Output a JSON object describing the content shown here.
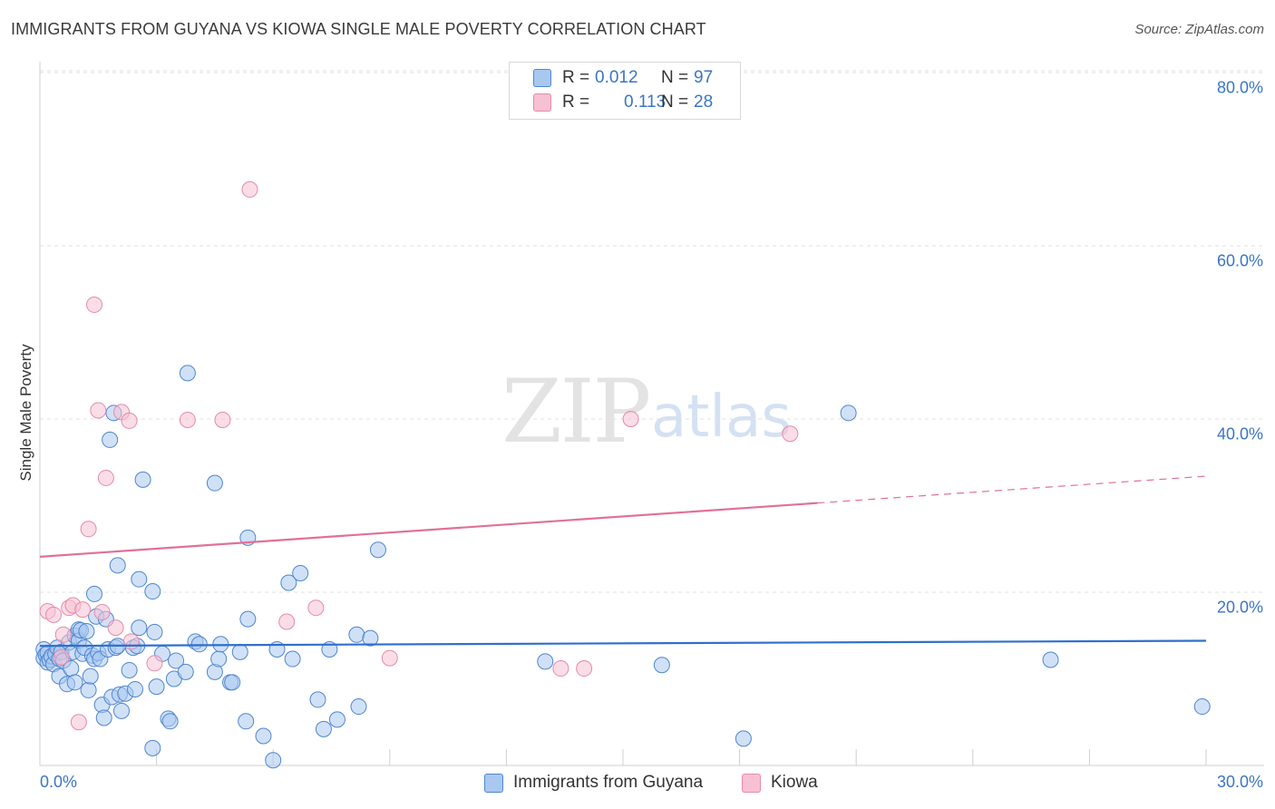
{
  "title": "IMMIGRANTS FROM GUYANA VS KIOWA SINGLE MALE POVERTY CORRELATION CHART",
  "source": "Source: ZipAtlas.com",
  "watermark": {
    "zip": "ZIP",
    "atlas": "atlas"
  },
  "legend": {
    "rows": [
      {
        "r_label": "R =",
        "r_value": "0.012",
        "n_label": "N =",
        "n_value": "97"
      },
      {
        "r_label": "R =",
        "r_value": "0.113",
        "n_label": "N =",
        "n_value": "28"
      }
    ]
  },
  "colors": {
    "blue_fill": "#a9c8f0",
    "blue_stroke": "#4f86cf",
    "blue_line": "#2f6fcc",
    "pink_fill": "#f7c1d3",
    "pink_stroke": "#e68aa8",
    "pink_line": "#e0709a",
    "grid": "#e2e2e2",
    "tick_text": "#3a75c4"
  },
  "chart_data": {
    "type": "scatter",
    "title": "IMMIGRANTS FROM GUYANA VS KIOWA SINGLE MALE POVERTY CORRELATION CHART",
    "xlabel": "",
    "ylabel": "Single Male Poverty",
    "xlim": [
      0,
      30
    ],
    "ylim": [
      0,
      80
    ],
    "x_tick_labels": [
      "0.0%",
      "30.0%"
    ],
    "y_ticks": [
      20,
      40,
      60,
      80
    ],
    "y_tick_labels": [
      "20.0%",
      "40.0%",
      "60.0%",
      "80.0%"
    ],
    "grid": true,
    "legend_position": "top-center",
    "series": [
      {
        "name": "Immigrants from Guyana",
        "color": "#a9c8f0",
        "r": 0.012,
        "n": 97,
        "trend": {
          "x0": 0,
          "y0": 13.8,
          "x1": 30,
          "y1": 14.4
        },
        "points": [
          [
            0.1,
            12.4
          ],
          [
            0.1,
            13.4
          ],
          [
            0.15,
            12.8
          ],
          [
            0.2,
            13.0
          ],
          [
            0.2,
            11.9
          ],
          [
            0.25,
            12.2
          ],
          [
            0.3,
            12.6
          ],
          [
            0.35,
            11.7
          ],
          [
            0.4,
            12.9
          ],
          [
            0.45,
            13.6
          ],
          [
            0.5,
            12.3
          ],
          [
            0.5,
            10.3
          ],
          [
            0.55,
            13.1
          ],
          [
            0.6,
            12.1
          ],
          [
            0.7,
            9.4
          ],
          [
            0.75,
            14.2
          ],
          [
            0.8,
            11.2
          ],
          [
            0.85,
            13.1
          ],
          [
            0.9,
            15.0
          ],
          [
            0.9,
            9.6
          ],
          [
            1.0,
            15.7
          ],
          [
            1.0,
            14.4
          ],
          [
            1.05,
            15.6
          ],
          [
            1.1,
            12.9
          ],
          [
            1.15,
            13.6
          ],
          [
            1.2,
            15.5
          ],
          [
            1.25,
            8.7
          ],
          [
            1.3,
            10.3
          ],
          [
            1.35,
            12.7
          ],
          [
            1.4,
            12.3
          ],
          [
            1.4,
            19.8
          ],
          [
            1.45,
            17.2
          ],
          [
            1.5,
            13.0
          ],
          [
            1.55,
            12.3
          ],
          [
            1.6,
            7.0
          ],
          [
            1.65,
            5.5
          ],
          [
            1.7,
            16.9
          ],
          [
            1.75,
            13.4
          ],
          [
            1.8,
            37.6
          ],
          [
            1.85,
            7.9
          ],
          [
            1.9,
            40.7
          ],
          [
            1.95,
            13.6
          ],
          [
            2.0,
            23.1
          ],
          [
            2.05,
            8.2
          ],
          [
            2.1,
            6.3
          ],
          [
            2.2,
            8.3
          ],
          [
            2.3,
            11.0
          ],
          [
            2.4,
            13.6
          ],
          [
            2.45,
            8.8
          ],
          [
            2.5,
            13.8
          ],
          [
            2.55,
            15.9
          ],
          [
            2.55,
            21.5
          ],
          [
            2.65,
            33.0
          ],
          [
            2.9,
            20.1
          ],
          [
            2.9,
            2.0
          ],
          [
            2.95,
            15.4
          ],
          [
            3.0,
            9.1
          ],
          [
            3.15,
            12.9
          ],
          [
            3.3,
            5.4
          ],
          [
            3.35,
            5.1
          ],
          [
            3.45,
            10.0
          ],
          [
            3.5,
            12.1
          ],
          [
            3.8,
            45.3
          ],
          [
            3.75,
            10.8
          ],
          [
            4.0,
            14.3
          ],
          [
            4.1,
            14.0
          ],
          [
            4.5,
            10.8
          ],
          [
            4.5,
            32.6
          ],
          [
            4.6,
            12.3
          ],
          [
            4.65,
            14.0
          ],
          [
            4.9,
            9.6
          ],
          [
            4.95,
            9.6
          ],
          [
            5.15,
            13.1
          ],
          [
            5.3,
            5.1
          ],
          [
            5.35,
            16.9
          ],
          [
            5.35,
            26.3
          ],
          [
            5.75,
            3.4
          ],
          [
            6.0,
            0.6
          ],
          [
            6.1,
            13.4
          ],
          [
            6.4,
            21.1
          ],
          [
            6.5,
            12.3
          ],
          [
            6.7,
            22.2
          ],
          [
            7.15,
            7.6
          ],
          [
            7.3,
            4.2
          ],
          [
            7.45,
            13.4
          ],
          [
            7.65,
            5.3
          ],
          [
            8.15,
            15.1
          ],
          [
            8.2,
            6.8
          ],
          [
            8.5,
            14.7
          ],
          [
            8.7,
            24.9
          ],
          [
            13.0,
            12.0
          ],
          [
            16.0,
            11.6
          ],
          [
            18.1,
            3.1
          ],
          [
            20.8,
            40.7
          ],
          [
            26.0,
            12.2
          ],
          [
            29.9,
            6.8
          ],
          [
            2.0,
            13.8
          ]
        ]
      },
      {
        "name": "Kiowa",
        "color": "#f7c1d3",
        "r": 0.113,
        "n": 28,
        "trend": {
          "x0": 0,
          "y0": 24.1,
          "x1": 20.0,
          "y1": 30.3,
          "dash_to_x": 30,
          "dash_to_y": 33.4
        },
        "points": [
          [
            0.2,
            17.8
          ],
          [
            0.35,
            17.4
          ],
          [
            0.6,
            15.1
          ],
          [
            0.75,
            18.2
          ],
          [
            0.85,
            18.5
          ],
          [
            1.0,
            5.0
          ],
          [
            1.1,
            18.0
          ],
          [
            1.25,
            27.3
          ],
          [
            1.4,
            53.2
          ],
          [
            1.5,
            41.0
          ],
          [
            1.6,
            17.7
          ],
          [
            1.7,
            33.2
          ],
          [
            1.95,
            15.9
          ],
          [
            2.1,
            40.8
          ],
          [
            2.3,
            39.8
          ],
          [
            2.35,
            14.3
          ],
          [
            2.95,
            11.8
          ],
          [
            3.8,
            39.9
          ],
          [
            4.7,
            39.9
          ],
          [
            5.4,
            66.5
          ],
          [
            6.35,
            16.6
          ],
          [
            7.1,
            18.2
          ],
          [
            9.0,
            12.4
          ],
          [
            13.4,
            11.2
          ],
          [
            14.0,
            11.2
          ],
          [
            15.2,
            40.0
          ],
          [
            19.3,
            38.3
          ],
          [
            0.55,
            12.5
          ]
        ]
      }
    ]
  }
}
